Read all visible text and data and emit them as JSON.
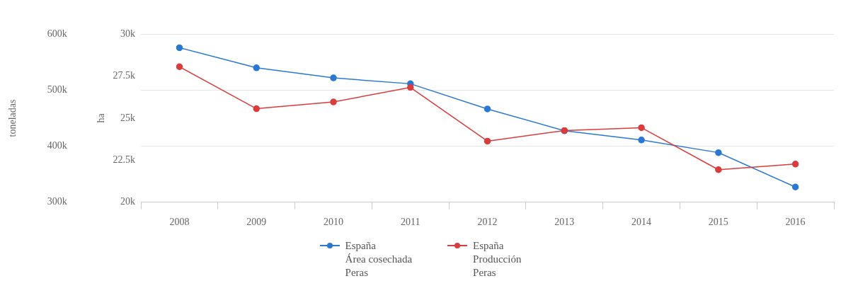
{
  "chart_data": {
    "type": "line",
    "categories": [
      "2008",
      "2009",
      "2010",
      "2011",
      "2012",
      "2013",
      "2014",
      "2015",
      "2016"
    ],
    "ylabel": "toneladas",
    "y2label": "ha",
    "ylim": [
      300000,
      600000
    ],
    "yticks": [
      {
        "value": 300000,
        "label": "300k"
      },
      {
        "value": 400000,
        "label": "400k"
      },
      {
        "value": 500000,
        "label": "500k"
      },
      {
        "value": 600000,
        "label": "600k"
      }
    ],
    "y2lim": [
      20000,
      30000
    ],
    "y2ticks": [
      {
        "value": 20000,
        "label": "20k"
      },
      {
        "value": 22500,
        "label": "22.5k"
      },
      {
        "value": 25000,
        "label": "25k"
      },
      {
        "value": 27500,
        "label": "27.5k"
      },
      {
        "value": 30000,
        "label": "30k"
      }
    ],
    "series": [
      {
        "name": "España\nÁrea cosechada\nPeras",
        "color": "#2a78d4",
        "axis": "y2",
        "values": [
          29200,
          28000,
          27400,
          27050,
          25550,
          24250,
          23700,
          22950,
          20900
        ]
      },
      {
        "name": "España\nProducción\nPeras",
        "color": "#d83c3c",
        "axis": "y",
        "values": [
          542000,
          467000,
          479000,
          505000,
          409000,
          428000,
          433000,
          358000,
          368000
        ]
      }
    ],
    "grid": "y",
    "legend": "bottom",
    "marker": "circle",
    "line_style": "solid"
  }
}
